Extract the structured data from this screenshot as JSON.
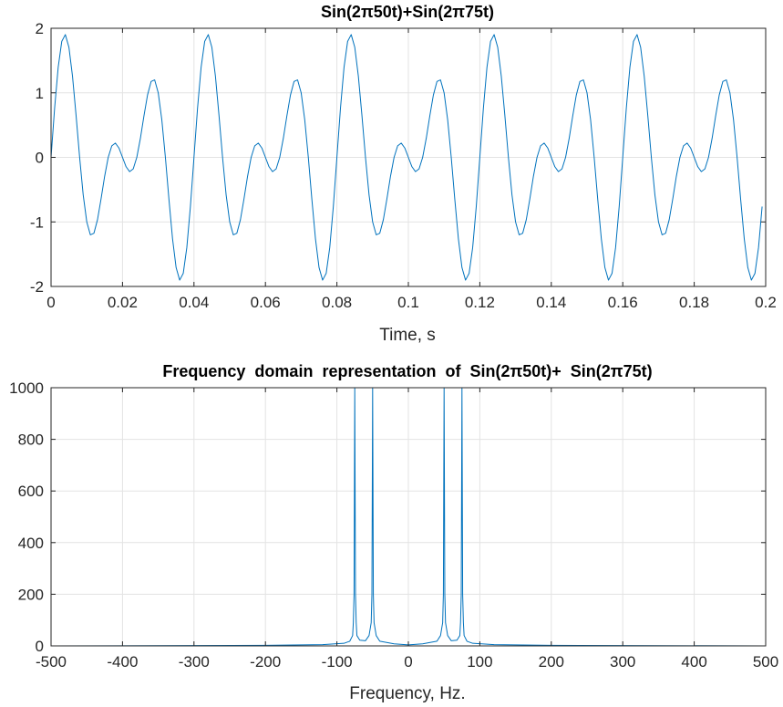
{
  "chart_data": [
    {
      "type": "line",
      "title": "Sin(2π50t)+Sin(2π75t)",
      "xlabel": "Time, s",
      "ylabel": "",
      "xlim": [
        0,
        0.2
      ],
      "ylim": [
        -2,
        2
      ],
      "grid": true,
      "x_ticks": [
        0,
        0.02,
        0.04,
        0.06,
        0.08,
        0.1,
        0.12,
        0.14,
        0.16,
        0.18,
        0.2
      ],
      "x_tick_labels": [
        "0",
        "0.02",
        "0.04",
        "0.06",
        "0.08",
        "0.1",
        "0.12",
        "0.14",
        "0.16",
        "0.18",
        "0.2"
      ],
      "y_ticks": [
        -2,
        -1,
        0,
        1,
        2
      ],
      "y_tick_labels": [
        "-2",
        "-1",
        "0",
        "1",
        "2"
      ],
      "series": [
        {
          "color": "#0072bd",
          "function": "sin(2*pi*50*t)+sin(2*pi*75*t)",
          "x_start": 0,
          "x_end": 0.199,
          "x_step": 0.001
        }
      ]
    },
    {
      "type": "line",
      "title": "Frequency  domain  representation  of  Sin(2π50t)+  Sin(2π75t)",
      "xlabel": "Frequency, Hz.",
      "ylabel": "",
      "xlim": [
        -500,
        500
      ],
      "ylim": [
        0,
        1000
      ],
      "grid": true,
      "x_ticks": [
        -500,
        -400,
        -300,
        -200,
        -100,
        0,
        100,
        200,
        300,
        400,
        500
      ],
      "x_tick_labels": [
        "-500",
        "-400",
        "-300",
        "-200",
        "-100",
        "0",
        "100",
        "200",
        "300",
        "400",
        "500"
      ],
      "y_ticks": [
        0,
        200,
        400,
        600,
        800,
        1000
      ],
      "y_tick_labels": [
        "0",
        "200",
        "400",
        "600",
        "800",
        "1000"
      ],
      "series": [
        {
          "color": "#0072bd",
          "x": [
            -500,
            -200,
            -120,
            -90,
            -82,
            -78,
            -77,
            -76,
            -75,
            -74,
            -73,
            -72,
            -68,
            -60,
            -55,
            -52,
            -51,
            -50,
            -49,
            -48,
            -45,
            -40,
            -20,
            0,
            20,
            40,
            45,
            48,
            49,
            50,
            51,
            52,
            55,
            60,
            68,
            72,
            73,
            74,
            75,
            76,
            77,
            78,
            82,
            90,
            120,
            200,
            500
          ],
          "y": [
            0,
            2,
            5,
            10,
            18,
            40,
            90,
            200,
            1000,
            200,
            90,
            40,
            22,
            20,
            40,
            90,
            200,
            1000,
            200,
            90,
            40,
            18,
            8,
            4,
            8,
            18,
            40,
            90,
            200,
            1000,
            200,
            90,
            40,
            20,
            22,
            40,
            90,
            200,
            1000,
            200,
            90,
            40,
            18,
            10,
            5,
            2,
            0
          ]
        }
      ]
    }
  ]
}
